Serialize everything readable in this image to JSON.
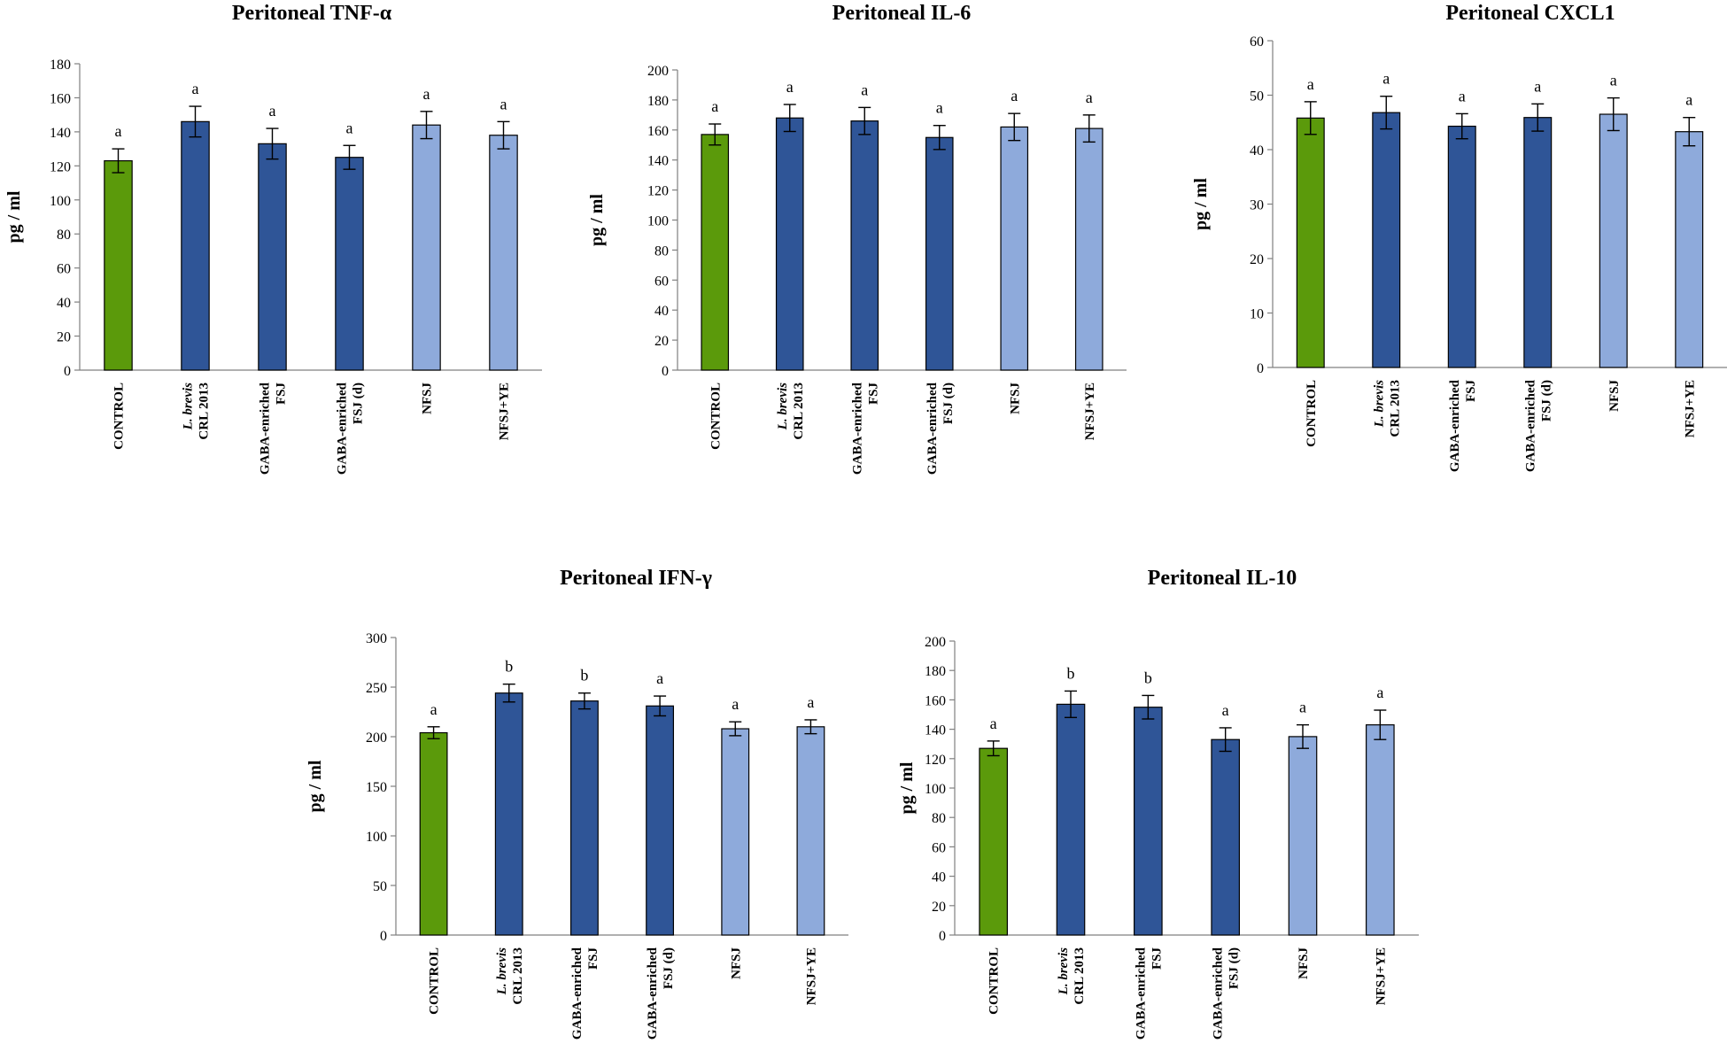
{
  "colors": {
    "control": "#5b9a0b",
    "treatment_dark": "#2f5597",
    "treatment_light": "#8eaadb",
    "bar_edge": "#000000",
    "axis": "#808080"
  },
  "chart_data": [
    {
      "type": "bar",
      "title": "Peritoneal TNF-α",
      "xlabel": "",
      "ylabel": "pg / ml",
      "ylim": [
        0,
        180
      ],
      "ytick_step": 20,
      "categories": [
        "CONTROL",
        "L. brevis CRL 2013",
        "GABA-enriched FSJ",
        "GABA-enriched FSJ (d)",
        "NFSJ",
        "NFSJ+YE"
      ],
      "category_lines": [
        [
          "CONTROL"
        ],
        [
          "L. brevis",
          "CRL 2013"
        ],
        [
          "GABA-enriched",
          "FSJ"
        ],
        [
          "GABA-enriched",
          "FSJ (d)"
        ],
        [
          "NFSJ"
        ],
        [
          "NFSJ+YE"
        ]
      ],
      "bar_colors": [
        "control",
        "treatment_dark",
        "treatment_dark",
        "treatment_dark",
        "treatment_light",
        "treatment_light"
      ],
      "values": [
        123,
        146,
        133,
        125,
        144,
        138
      ],
      "errors": [
        7,
        9,
        9,
        7,
        8,
        8
      ],
      "letters": [
        "a",
        "a",
        "a",
        "a",
        "a",
        "a"
      ]
    },
    {
      "type": "bar",
      "title": "Peritoneal IL-6",
      "xlabel": "",
      "ylabel": "pg / ml",
      "ylim": [
        0,
        200
      ],
      "ytick_step": 20,
      "categories": [
        "CONTROL",
        "L. brevis CRL 2013",
        "GABA-enriched FSJ",
        "GABA-enriched FSJ (d)",
        "NFSJ",
        "NFSJ+YE"
      ],
      "category_lines": [
        [
          "CONTROL"
        ],
        [
          "L. brevis",
          "CRL 2013"
        ],
        [
          "GABA-enriched",
          "FSJ"
        ],
        [
          "GABA-enriched",
          "FSJ (d)"
        ],
        [
          "NFSJ"
        ],
        [
          "NFSJ+YE"
        ]
      ],
      "bar_colors": [
        "control",
        "treatment_dark",
        "treatment_dark",
        "treatment_dark",
        "treatment_light",
        "treatment_light"
      ],
      "values": [
        157,
        168,
        166,
        155,
        162,
        161
      ],
      "errors": [
        7,
        9,
        9,
        8,
        9,
        9
      ],
      "letters": [
        "a",
        "a",
        "a",
        "a",
        "a",
        "a"
      ]
    },
    {
      "type": "bar",
      "title": "Peritoneal CXCL1",
      "xlabel": "",
      "ylabel": "pg / ml",
      "ylim": [
        0,
        60
      ],
      "ytick_step": 10,
      "categories": [
        "CONTROL",
        "L. brevis CRL 2013",
        "GABA-enriched FSJ",
        "GABA-enriched FSJ (d)",
        "NFSJ",
        "NFSJ+YE"
      ],
      "category_lines": [
        [
          "CONTROL"
        ],
        [
          "L. brevis",
          "CRL 2013"
        ],
        [
          "GABA-enriched",
          "FSJ"
        ],
        [
          "GABA-enriched",
          "FSJ (d)"
        ],
        [
          "NFSJ"
        ],
        [
          "NFSJ+YE"
        ]
      ],
      "bar_colors": [
        "control",
        "treatment_dark",
        "treatment_dark",
        "treatment_dark",
        "treatment_light",
        "treatment_light"
      ],
      "values": [
        45.8,
        46.8,
        44.3,
        45.9,
        46.5,
        43.3
      ],
      "errors": [
        3,
        3,
        2.3,
        2.5,
        3,
        2.6
      ],
      "letters": [
        "a",
        "a",
        "a",
        "a",
        "a",
        "a"
      ]
    },
    {
      "type": "bar",
      "title": "Peritoneal IFN-γ",
      "xlabel": "",
      "ylabel": "pg / ml",
      "ylim": [
        0,
        300
      ],
      "ytick_step": 50,
      "categories": [
        "CONTROL",
        "L. brevis CRL 2013",
        "GABA-enriched FSJ",
        "GABA-enriched FSJ (d)",
        "NFSJ",
        "NFSJ+YE"
      ],
      "category_lines": [
        [
          "CONTROL"
        ],
        [
          "L. brevis",
          "CRL 2013"
        ],
        [
          "GABA-enriched",
          "FSJ"
        ],
        [
          "GABA-enriched",
          "FSJ (d)"
        ],
        [
          "NFSJ"
        ],
        [
          "NFSJ+YE"
        ]
      ],
      "bar_colors": [
        "control",
        "treatment_dark",
        "treatment_dark",
        "treatment_dark",
        "treatment_light",
        "treatment_light"
      ],
      "values": [
        204,
        244,
        236,
        231,
        208,
        210
      ],
      "errors": [
        6,
        9,
        8,
        10,
        7,
        7
      ],
      "letters": [
        "a",
        "b",
        "b",
        "a",
        "a",
        "a"
      ]
    },
    {
      "type": "bar",
      "title": "Peritoneal IL-10",
      "xlabel": "",
      "ylabel": "pg / ml",
      "ylim": [
        0,
        200
      ],
      "ytick_step": 20,
      "categories": [
        "CONTROL",
        "L. brevis CRL 2013",
        "GABA-enriched FSJ",
        "GABA-enriched FSJ (d)",
        "NFSJ",
        "NFSJ+YE"
      ],
      "category_lines": [
        [
          "CONTROL"
        ],
        [
          "L. brevis",
          "CRL 2013"
        ],
        [
          "GABA-enriched",
          "FSJ"
        ],
        [
          "GABA-enriched",
          "FSJ (d)"
        ],
        [
          "NFSJ"
        ],
        [
          "NFSJ+YE"
        ]
      ],
      "bar_colors": [
        "control",
        "treatment_dark",
        "treatment_dark",
        "treatment_dark",
        "treatment_light",
        "treatment_light"
      ],
      "values": [
        127,
        157,
        155,
        133,
        135,
        143
      ],
      "errors": [
        5,
        9,
        8,
        8,
        8,
        10
      ],
      "letters": [
        "a",
        "b",
        "b",
        "a",
        "a",
        "a"
      ]
    }
  ]
}
